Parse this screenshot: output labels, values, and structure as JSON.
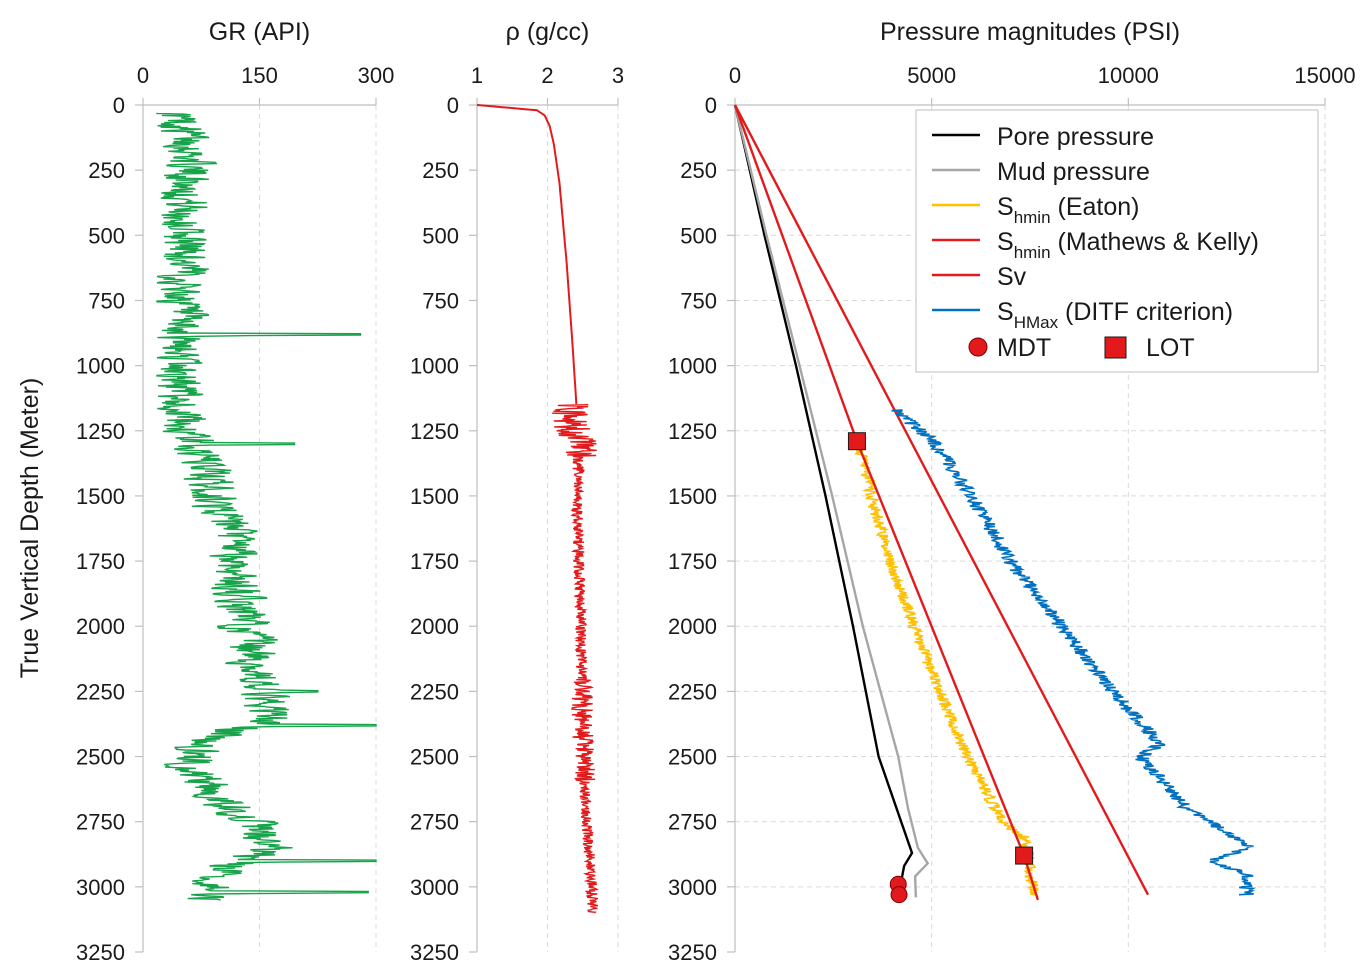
{
  "chart_data": [
    {
      "type": "line",
      "title": "GR (API)",
      "ylabel": "True Vertical Depth (Meter)",
      "xlim": [
        0,
        300
      ],
      "x_ticks": [
        "0",
        "150",
        "300"
      ],
      "ylim": [
        3250,
        0
      ],
      "y_ticks": [
        "0",
        "250",
        "500",
        "750",
        "1000",
        "1250",
        "1500",
        "1750",
        "2000",
        "2250",
        "2500",
        "2750",
        "3000",
        "3250"
      ],
      "grid": "vertical dashed at 150",
      "series": [
        {
          "color": "#17a34a",
          "depth": [
            30,
            150,
            300,
            450,
            600,
            750,
            880,
            1000,
            1150,
            1300,
            1400,
            1500,
            1650,
            1800,
            1950,
            2100,
            2250,
            2350,
            2450,
            2550,
            2650,
            2750,
            2850,
            2950,
            3050
          ],
          "gr": [
            40,
            62,
            58,
            52,
            55,
            48,
            44,
            45,
            48,
            62,
            85,
            88,
            115,
            118,
            128,
            140,
            150,
            165,
            70,
            60,
            95,
            140,
            160,
            90,
            80
          ],
          "spikes": [
            [
              880,
              280
            ],
            [
              1300,
              195
            ],
            [
              2250,
              225
            ],
            [
              2380,
              300
            ],
            [
              2900,
              300
            ],
            [
              3020,
              290
            ]
          ]
        }
      ]
    },
    {
      "type": "line",
      "title": "ρ (g/cc)",
      "xlim": [
        1,
        3
      ],
      "x_ticks": [
        "1",
        "2",
        "3"
      ],
      "ylim": [
        3250,
        0
      ],
      "y_ticks": [
        "0",
        "250",
        "500",
        "750",
        "1000",
        "1250",
        "1500",
        "1750",
        "2000",
        "2250",
        "2500",
        "2750",
        "3000",
        "3250"
      ],
      "grid": "vertical dashed at 2",
      "series": [
        {
          "color": "#e31a1c",
          "depth": [
            0,
            20,
            40,
            80,
            150,
            300,
            600,
            900,
            1150,
            1200,
            1300,
            1500,
            1800,
            2100,
            2400,
            2700,
            2900,
            3100
          ],
          "density": [
            1.0,
            1.85,
            1.96,
            2.03,
            2.09,
            2.17,
            2.27,
            2.35,
            2.41,
            2.28,
            2.45,
            2.42,
            2.45,
            2.48,
            2.5,
            2.55,
            2.6,
            2.65
          ]
        }
      ]
    },
    {
      "type": "line",
      "title": "Pressure magnitudes (PSI)",
      "xlim": [
        0,
        15000
      ],
      "x_ticks": [
        "0",
        "5000",
        "10000",
        "15000"
      ],
      "ylim": [
        3250,
        0
      ],
      "y_ticks": [
        "0",
        "250",
        "500",
        "750",
        "1000",
        "1250",
        "1500",
        "1750",
        "2000",
        "2250",
        "2500",
        "2750",
        "3000",
        "3250"
      ],
      "grid": "dashed",
      "legend": "top-right",
      "legend_entries": {
        "pore": "Pore pressure",
        "mud": "Mud pressure",
        "shmin_eaton_main": "S",
        "shmin_eaton_sub": "hmin",
        "shmin_eaton_rest": " (Eaton)",
        "shmin_mk_main": "S",
        "shmin_mk_sub": "hmin",
        "shmin_mk_rest": " (Mathews & Kelly)",
        "sv": "Sv",
        "shmax_main": "S",
        "shmax_sub": "HMax",
        "shmax_rest": " (DITF criterion)",
        "mdt": "MDT",
        "lot": "LOT"
      },
      "series": [
        {
          "key": "pore",
          "color": "#000000",
          "depth": [
            0,
            500,
            1000,
            1500,
            2000,
            2500,
            2870,
            2920,
            3000
          ],
          "psi": [
            0,
            750,
            1550,
            2300,
            3000,
            3650,
            4500,
            4300,
            4200
          ]
        },
        {
          "key": "mud",
          "color": "#a6a6a6",
          "depth": [
            0,
            500,
            1000,
            1500,
            2000,
            2500,
            2700,
            2850,
            2910,
            2960,
            3040
          ],
          "psi": [
            0,
            800,
            1640,
            2470,
            3250,
            4150,
            4400,
            4650,
            4900,
            4580,
            4600
          ]
        },
        {
          "key": "shmin_eaton",
          "color": "#ffc000",
          "depth": [
            1290,
            1500,
            1750,
            2000,
            2250,
            2500,
            2750,
            2820,
            2950,
            3030
          ],
          "psi": [
            3150,
            3450,
            3950,
            4550,
            5200,
            5900,
            6800,
            7450,
            7500,
            7600
          ]
        },
        {
          "key": "shmin_mk",
          "color": "#e31a1c",
          "depth": [
            0,
            1290,
            2880,
            3050
          ],
          "psi": [
            0,
            3100,
            7350,
            7700
          ]
        },
        {
          "key": "sv",
          "color": "#e31a1c",
          "depth": [
            0,
            3030
          ],
          "psi": [
            0,
            10500
          ]
        },
        {
          "key": "shmax",
          "color": "#0070c0",
          "depth": [
            1170,
            1300,
            1500,
            1750,
            2000,
            2250,
            2450,
            2500,
            2700,
            2850,
            2900,
            2950,
            3030
          ],
          "psi": [
            4100,
            5100,
            6000,
            7000,
            8300,
            9600,
            10800,
            10300,
            11500,
            13100,
            12100,
            13000,
            13000
          ]
        }
      ],
      "markers": [
        {
          "type": "MDT",
          "color": "#e31a1c",
          "points": [
            [
              4150,
              2990
            ],
            [
              4170,
              3030
            ]
          ]
        },
        {
          "type": "LOT",
          "color": "#e31a1c",
          "points": [
            [
              3100,
              1290
            ],
            [
              7350,
              2880
            ]
          ]
        }
      ]
    }
  ]
}
